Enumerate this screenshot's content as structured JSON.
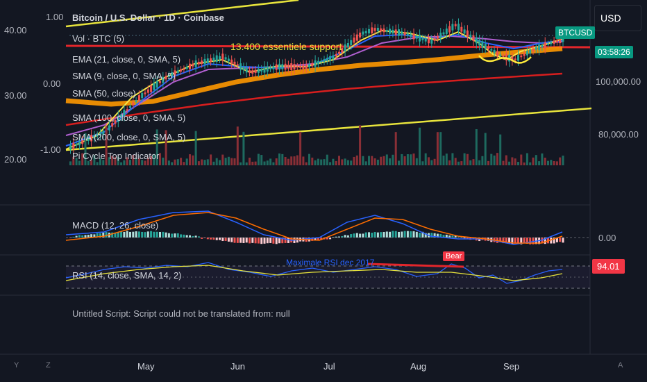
{
  "header": {
    "symbol_title": "Bitcoin / U.S. Dollar · 1D · Coinbase",
    "currency_button": "USD"
  },
  "indicators": [
    "Vol · BTC (5)",
    "EMA (21, close, 0, SMA, 5)",
    "SMA (9, close, 0, SMA, 5)",
    "SMA (50, close)",
    "SMA (100, close, 0, SMA, 5)",
    "SMA (200, close, 0, SMA, 5)",
    "Pi Cycle Top Indicator"
  ],
  "left_axis": [
    "40.00",
    "30.00",
    "20.00"
  ],
  "overlay_axis": [
    "1.00",
    "0.00",
    "-1.00"
  ],
  "right_axis": [
    "100,000.00",
    "80,000.00"
  ],
  "price_tag": {
    "symbol": "BTCUSD",
    "countdown": "03:58:26"
  },
  "annotations": {
    "support": "13.400 essentiele support",
    "rsi_note": "Maximale RSI dec 2017",
    "bear_label": "Bear"
  },
  "macd": {
    "label": "MACD (12, 26, close)",
    "zero": "0.00"
  },
  "rsi": {
    "label": "RSI (14, close, SMA, 14, 2)",
    "value": "94.01"
  },
  "script_message": "Untitled Script: Script could not be translated from: null",
  "months": [
    "May",
    "Jun",
    "Jul",
    "Aug",
    "Sep"
  ],
  "bottom_buttons": {
    "y": "Y",
    "z": "Z",
    "auto": "A"
  },
  "colors": {
    "background": "#131722",
    "yellow_line": "#e8e43c",
    "red_line": "#e3262b",
    "orange_band": "#ff9800",
    "purple": "#b05fd0",
    "blue": "#2962ff",
    "teal_tag": "#089981",
    "rsi_box": "#f23645"
  },
  "chart_data": {
    "type": "candlestick",
    "x": [
      "May",
      "Jun",
      "Jul",
      "Aug",
      "Sep"
    ],
    "yaxis_right": [
      "100,000.00",
      "80,000.00"
    ],
    "rsi_last": 94.01,
    "macd_zero": 0.0
  }
}
